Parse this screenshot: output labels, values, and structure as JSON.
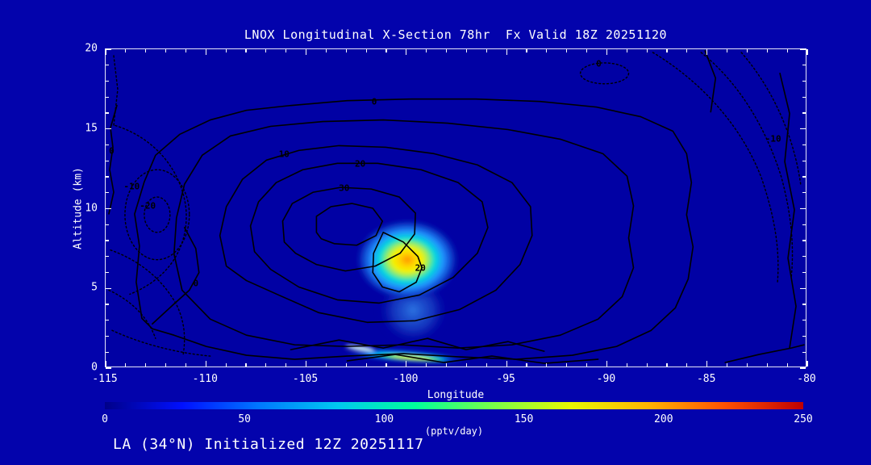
{
  "title": "LNOX Longitudinal X-Section 78hr  Fx Valid 18Z 20251120",
  "footer": "LA (34°N) Initialized 12Z 20251117",
  "colors": {
    "background": "#0303AC",
    "plot_background": "#0101A4",
    "frame": "#E6E6FA",
    "text": "#FFFFFF",
    "contour_line": "#000000"
  },
  "chart_data": {
    "type": "contour",
    "title": "LNOX Longitudinal X-Section 78hr  Fx Valid 18Z 20251120",
    "xlabel": "Longitude",
    "ylabel": "Altitude (km)",
    "xlim": [
      -115,
      -80
    ],
    "ylim": [
      0,
      20
    ],
    "x_ticks": [
      -115,
      -110,
      -105,
      -100,
      -95,
      -90,
      -85,
      -80
    ],
    "y_ticks": [
      0,
      5,
      10,
      15,
      20
    ],
    "grid": false,
    "contours": {
      "interval": 10,
      "levels_shown": [
        -20,
        -10,
        0,
        10,
        20,
        30
      ],
      "positive_style": "solid",
      "negative_style": "dotted"
    },
    "contour_labels": [
      {
        "value": "0",
        "lon": -101.6,
        "alt": 16.7
      },
      {
        "value": "0",
        "lon": -114.7,
        "alt": 13.6
      },
      {
        "value": "-10",
        "lon": -113.7,
        "alt": 11.4
      },
      {
        "value": "-20",
        "lon": -112.9,
        "alt": 10.2
      },
      {
        "value": "10",
        "lon": -106.1,
        "alt": 13.4
      },
      {
        "value": "20",
        "lon": -102.3,
        "alt": 12.8
      },
      {
        "value": "30",
        "lon": -103.1,
        "alt": 11.3
      },
      {
        "value": "20",
        "lon": -99.3,
        "alt": 6.3
      },
      {
        "value": "-10",
        "lon": -81.7,
        "alt": 14.4
      },
      {
        "value": "0",
        "lon": -90.4,
        "alt": 19.1
      },
      {
        "value": "0",
        "lon": -110.5,
        "alt": 5.3
      }
    ],
    "shaded_regions": [
      {
        "name": "elevated-plume",
        "center_lon": -99.8,
        "center_alt_km": 6.7,
        "extent_lon": [
          -102.5,
          -97.0
        ],
        "extent_alt_km": [
          3.0,
          9.5
        ],
        "peak_pptv_day": 170
      },
      {
        "name": "boundary-layer-streak",
        "extent_lon": [
          -102.8,
          -97.2
        ],
        "extent_alt_km": [
          0.0,
          1.2
        ],
        "peak_pptv_day": 200
      }
    ],
    "colorbar": {
      "label": "(pptv/day)",
      "min": 0,
      "max": 250,
      "ticks": [
        0,
        50,
        100,
        150,
        200,
        250
      ],
      "colors": [
        "#000089",
        "#0010FF",
        "#0078FF",
        "#00C8F0",
        "#00FF9C",
        "#78FF48",
        "#E8F800",
        "#FFB400",
        "#FF5000",
        "#BE0000"
      ]
    }
  }
}
